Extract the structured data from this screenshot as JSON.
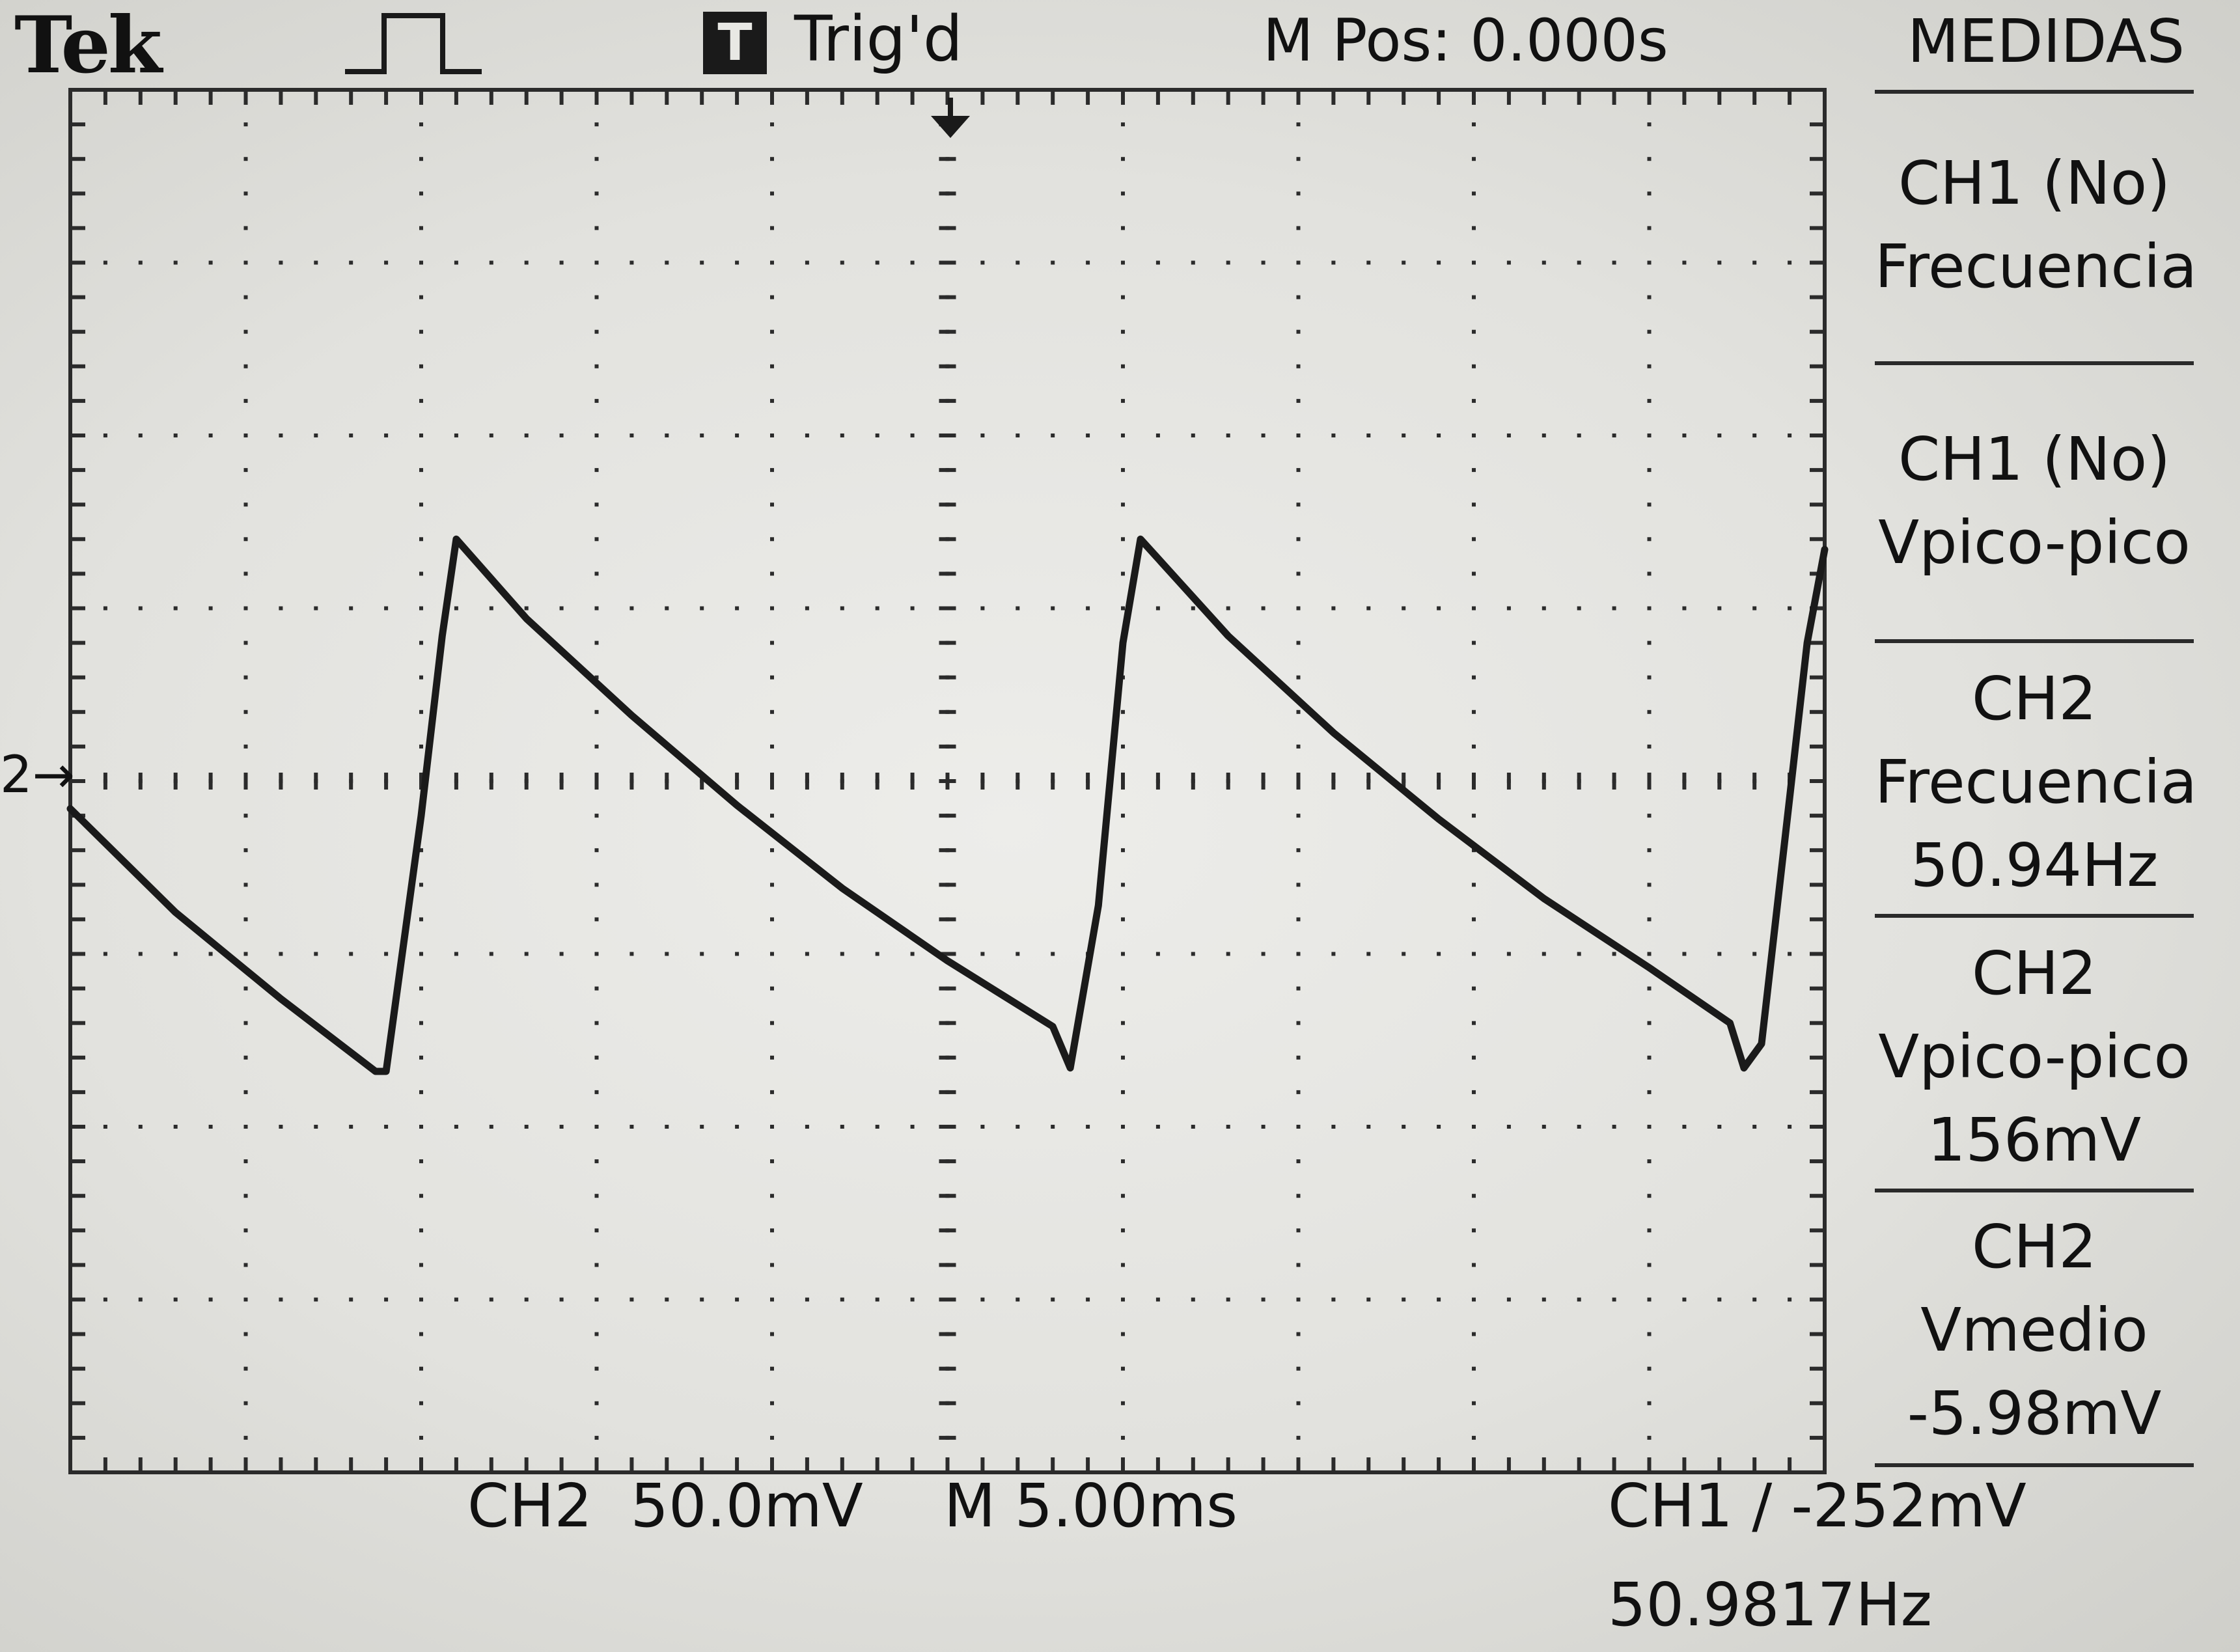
{
  "header": {
    "brand": "Tek",
    "acquisition_icon": "pulse-waveform-icon",
    "trigger_state_badge": "T",
    "trigger_status": "Trig'd",
    "main_position": "M Pos: 0.000s"
  },
  "menu": {
    "title": "MEDIDAS",
    "items": [
      {
        "lines": [
          "CH1 (No)",
          "Frecuencia"
        ]
      },
      {
        "lines": [
          "CH1 (No)",
          "Vpico-pico"
        ]
      },
      {
        "lines": [
          "CH2",
          "Frecuencia",
          "50.94Hz"
        ]
      },
      {
        "lines": [
          "CH2",
          "Vpico-pico",
          "156mV"
        ]
      },
      {
        "lines": [
          "CH2",
          "Vmedio",
          "-5.98mV"
        ]
      }
    ]
  },
  "footer": {
    "ch2_scale": "CH2  50.0mV",
    "timebase": "M 5.00ms",
    "trigger": "CH1 ∕ -252mV",
    "trigger_frequency": "50.9817Hz"
  },
  "channel_marker": "2→",
  "colors": {
    "screen": "#e6e6e2",
    "trace": "#1a1a1a",
    "graticule": "#2b2b2b"
  },
  "chart_data": {
    "type": "line",
    "xlim": [
      -25,
      25
    ],
    "ylim": [
      -200,
      200
    ],
    "x_unit": "ms",
    "y_unit": "mV",
    "grid": true,
    "series": [
      {
        "values": [
          {
            "x": -25.0,
            "y": -8
          },
          {
            "x": -22.0,
            "y": -38
          },
          {
            "x": -19.0,
            "y": -63
          },
          {
            "x": -16.3,
            "y": -84
          },
          {
            "x": -16.0,
            "y": -84
          },
          {
            "x": -15.0,
            "y": -10
          },
          {
            "x": -14.4,
            "y": 42
          },
          {
            "x": -14.0,
            "y": 70
          },
          {
            "x": -12.0,
            "y": 47
          },
          {
            "x": -9.0,
            "y": 19
          },
          {
            "x": -6.0,
            "y": -7
          },
          {
            "x": -3.0,
            "y": -31
          },
          {
            "x": 0.0,
            "y": -52
          },
          {
            "x": 3.0,
            "y": -71
          },
          {
            "x": 3.5,
            "y": -83
          },
          {
            "x": 4.3,
            "y": -36
          },
          {
            "x": 5.0,
            "y": 40
          },
          {
            "x": 5.5,
            "y": 70
          },
          {
            "x": 8.0,
            "y": 42
          },
          {
            "x": 11.0,
            "y": 14
          },
          {
            "x": 14.0,
            "y": -11
          },
          {
            "x": 17.0,
            "y": -34
          },
          {
            "x": 20.0,
            "y": -54
          },
          {
            "x": 22.3,
            "y": -70
          },
          {
            "x": 22.7,
            "y": -83
          },
          {
            "x": 23.2,
            "y": -76
          },
          {
            "x": 24.0,
            "y": -5
          },
          {
            "x": 24.5,
            "y": 40
          },
          {
            "x": 25.0,
            "y": 67
          }
        ]
      }
    ]
  }
}
